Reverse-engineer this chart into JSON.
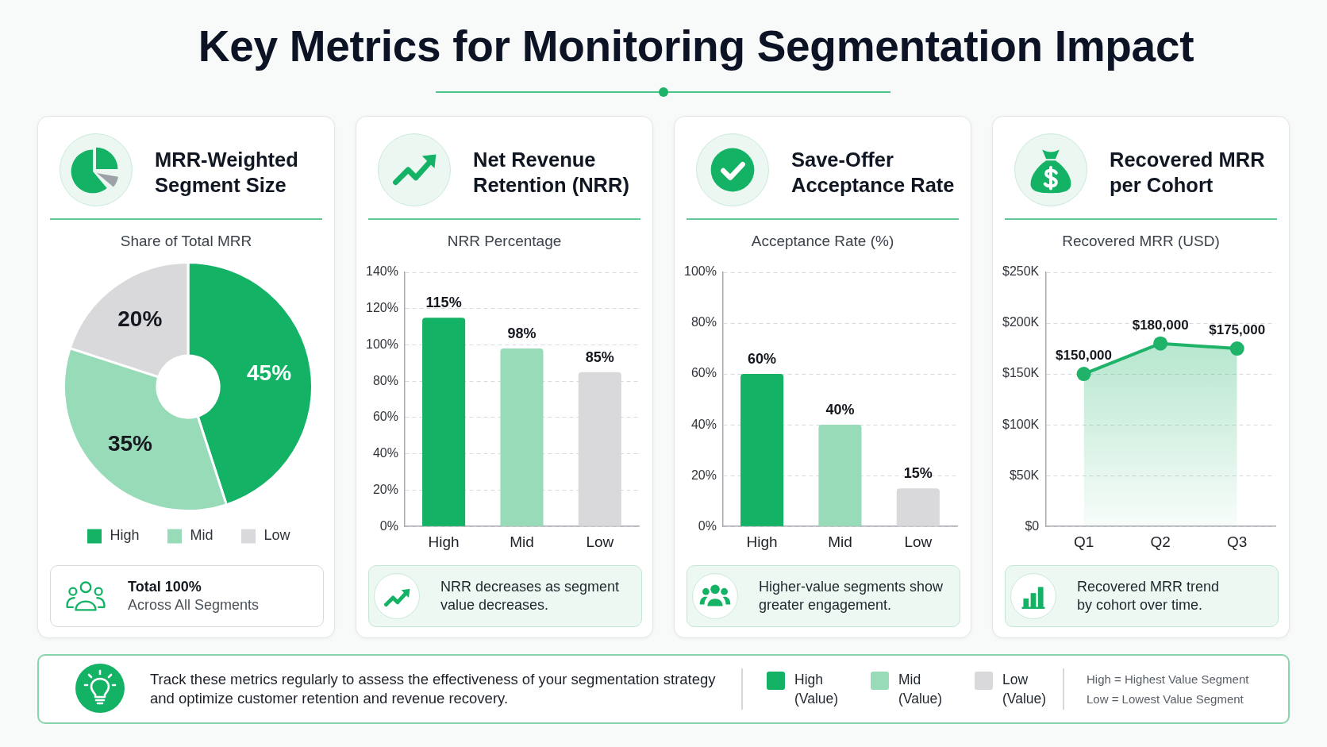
{
  "chart_data": [
    {
      "type": "other",
      "title": "Key Metrics for Monitoring Segmentation Impact"
    },
    {
      "type": "donut",
      "title": "MRR-Weighted Segment Size",
      "subtitle": "Share of Total MRR",
      "categories": [
        "High",
        "Mid",
        "Low"
      ],
      "values": [
        45,
        35,
        20
      ],
      "colors": [
        "#13b265",
        "#97dbb8",
        "#d9d9dc"
      ],
      "value_labels": [
        "45%",
        "35%",
        "20%"
      ],
      "legend": "bottom",
      "annotations": [
        "Total 100%",
        "Across All Segments"
      ]
    },
    {
      "type": "bar",
      "title": "Net Revenue Retention (NRR)",
      "subtitle": "NRR Percentage",
      "categories": [
        "High",
        "Mid",
        "Low"
      ],
      "values": [
        115,
        98,
        85
      ],
      "colors": [
        "#13b265",
        "#97dbb8",
        "#d9d9dc"
      ],
      "value_labels": [
        "115%",
        "98%",
        "85%"
      ],
      "ylim": [
        0,
        140
      ],
      "yticks": [
        {
          "value": 0,
          "label": "0%"
        },
        {
          "value": 20,
          "label": "20%"
        },
        {
          "value": 40,
          "label": "40%"
        },
        {
          "value": 60,
          "label": "60%"
        },
        {
          "value": 80,
          "label": "80%"
        },
        {
          "value": 100,
          "label": "100%"
        },
        {
          "value": 120,
          "label": "120%"
        },
        {
          "value": 140,
          "label": "140%"
        }
      ],
      "grid": "y",
      "annotations": [
        "NRR decreases as segment value decreases."
      ]
    },
    {
      "type": "bar",
      "title": "Save-Offer Acceptance Rate",
      "subtitle": "Acceptance Rate (%)",
      "categories": [
        "High",
        "Mid",
        "Low"
      ],
      "values": [
        60,
        40,
        15
      ],
      "colors": [
        "#13b265",
        "#97dbb8",
        "#d9d9dc"
      ],
      "value_labels": [
        "60%",
        "40%",
        "15%"
      ],
      "ylim": [
        0,
        100
      ],
      "yticks": [
        {
          "value": 0,
          "label": "0%"
        },
        {
          "value": 20,
          "label": "20%"
        },
        {
          "value": 40,
          "label": "40%"
        },
        {
          "value": 60,
          "label": "60%"
        },
        {
          "value": 80,
          "label": "80%"
        },
        {
          "value": 100,
          "label": "100%"
        }
      ],
      "grid": "y",
      "annotations": [
        "Higher-value segments show greater engagement."
      ]
    },
    {
      "type": "area",
      "title": "Recovered MRR per Cohort",
      "subtitle": "Recovered MRR (USD)",
      "categories": [
        "Q1",
        "Q2",
        "Q3"
      ],
      "values": [
        150000,
        180000,
        175000
      ],
      "color": "#1fb369",
      "value_labels": [
        "$150,000",
        "$180,000",
        "$175,000"
      ],
      "marker": "circle",
      "line_style": "solid",
      "ylim": [
        0,
        250000
      ],
      "yticks": [
        {
          "value": 0,
          "label": "$0"
        },
        {
          "value": 50000,
          "label": "$50K"
        },
        {
          "value": 100000,
          "label": "$100K"
        },
        {
          "value": 150000,
          "label": "$150K"
        },
        {
          "value": 200000,
          "label": "$200K"
        },
        {
          "value": 250000,
          "label": "$250K"
        }
      ],
      "grid": "y",
      "annotations": [
        "Recovered MRR trend by cohort over time."
      ]
    },
    {
      "type": "other",
      "categories": [
        "High (Value)",
        "Mid (Value)",
        "Low (Value)"
      ],
      "colors": [
        "#13b265",
        "#97dbb8",
        "#d9d9dc"
      ],
      "annotations": [
        "Track these metrics regularly to assess the effectiveness of your segmentation strategy and optimize customer retention and revenue recovery.",
        "High = Highest Value Segment",
        "Low = Lowest Value Segment"
      ]
    }
  ]
}
